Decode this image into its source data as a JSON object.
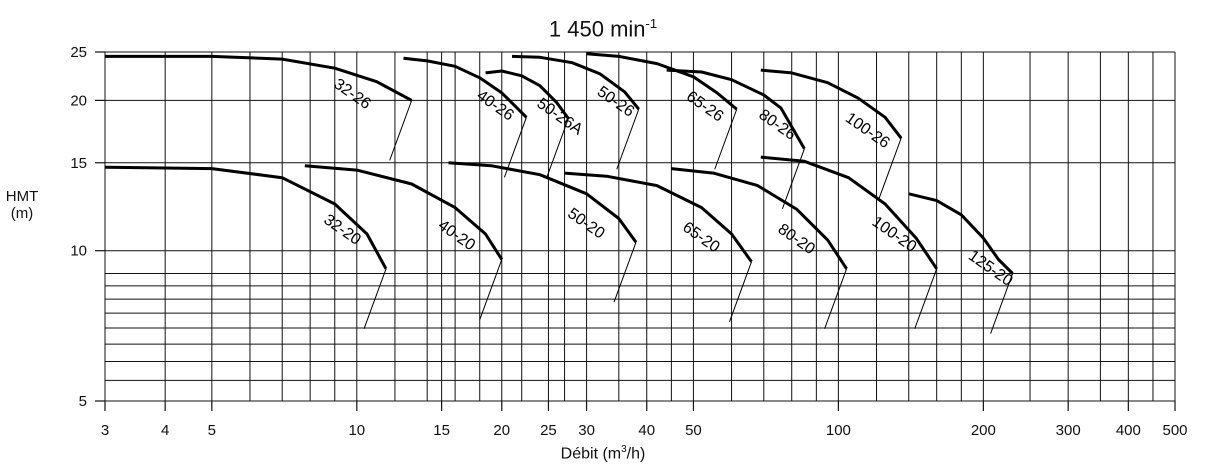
{
  "chart_data": {
    "type": "line",
    "title": "1 450 min",
    "title_superscript": "-1",
    "ylabel_line1": "HMT",
    "ylabel_line2": "(m)",
    "xlabel": "Débit (m",
    "xlabel_superscript": "3",
    "xlabel_tail": "/h)",
    "x_scale": "log",
    "y_scale": "log",
    "xlim": [
      3,
      500
    ],
    "ylim": [
      5,
      25
    ],
    "grid": true,
    "x_ticks": [
      3,
      4,
      5,
      10,
      15,
      20,
      25,
      30,
      40,
      50,
      100,
      200,
      300,
      400,
      500
    ],
    "x_tick_labels": [
      "3",
      "4",
      "5",
      "10",
      "15",
      "20",
      "25",
      "30",
      "40",
      "50",
      "100",
      "200",
      "300",
      "400",
      "500"
    ],
    "y_ticks": [
      5,
      10,
      15,
      20,
      25
    ],
    "y_tick_labels": [
      "5",
      "10",
      "15",
      "20",
      "25"
    ],
    "series": [
      {
        "name": "32-26",
        "x": [
          3,
          5,
          7,
          9,
          11,
          13
        ],
        "y": [
          24.5,
          24.5,
          24.2,
          23.2,
          21.8,
          20.0
        ]
      },
      {
        "name": "40-26",
        "x": [
          12.5,
          14,
          16,
          18,
          20,
          22.5
        ],
        "y": [
          24.3,
          24.0,
          23.4,
          22.2,
          20.7,
          18.5
        ]
      },
      {
        "name": "50-26A",
        "x": [
          18.5,
          20,
          22,
          24,
          26,
          27.5
        ],
        "y": [
          22.7,
          22.9,
          22.4,
          21.4,
          19.8,
          18.4
        ]
      },
      {
        "name": "50-26",
        "x": [
          21,
          24,
          28,
          32,
          36,
          38.5
        ],
        "y": [
          24.5,
          24.4,
          23.8,
          22.6,
          20.8,
          19.2
        ]
      },
      {
        "name": "65-26",
        "x": [
          30,
          35,
          42,
          50,
          56,
          61.5
        ],
        "y": [
          24.8,
          24.5,
          23.7,
          22.3,
          20.7,
          19.2
        ]
      },
      {
        "name": "80-26",
        "x": [
          44,
          52,
          60,
          70,
          76,
          85
        ],
        "y": [
          23.0,
          22.8,
          22.0,
          20.5,
          19.3,
          16.0
        ]
      },
      {
        "name": "100-26",
        "x": [
          69,
          80,
          95,
          110,
          125,
          135
        ],
        "y": [
          23.0,
          22.7,
          21.7,
          20.2,
          18.5,
          16.8
        ]
      },
      {
        "name": "32-20",
        "x": [
          3,
          5,
          7,
          9,
          10.5,
          11.5
        ],
        "y": [
          14.7,
          14.6,
          14.0,
          12.4,
          10.8,
          9.2
        ]
      },
      {
        "name": "40-20",
        "x": [
          7.8,
          10,
          13,
          16,
          18.5,
          20
        ],
        "y": [
          14.8,
          14.5,
          13.6,
          12.2,
          10.8,
          9.6
        ]
      },
      {
        "name": "50-20",
        "x": [
          15.5,
          19,
          24,
          30,
          35,
          38
        ],
        "y": [
          15.0,
          14.8,
          14.2,
          13.0,
          11.6,
          10.4
        ]
      },
      {
        "name": "65-20",
        "x": [
          27,
          33,
          42,
          52,
          60,
          66
        ],
        "y": [
          14.3,
          14.1,
          13.5,
          12.2,
          10.8,
          9.5
        ]
      },
      {
        "name": "80-20",
        "x": [
          45,
          55,
          68,
          82,
          95,
          104
        ],
        "y": [
          14.6,
          14.3,
          13.5,
          12.1,
          10.5,
          9.2
        ]
      },
      {
        "name": "100-20",
        "x": [
          69,
          85,
          105,
          125,
          145,
          160
        ],
        "y": [
          15.4,
          15.1,
          14.0,
          12.4,
          10.6,
          9.2
        ]
      },
      {
        "name": "125-20",
        "x": [
          140,
          160,
          180,
          200,
          215,
          230
        ],
        "y": [
          13.0,
          12.6,
          11.8,
          10.6,
          9.6,
          9.0
        ]
      }
    ],
    "annotations": [
      "32-26",
      "40-26",
      "50-26A",
      "50-26",
      "65-26",
      "80-26",
      "100-26",
      "32-20",
      "40-20",
      "50-20",
      "65-20",
      "80-20",
      "100-20",
      "125-20"
    ]
  }
}
